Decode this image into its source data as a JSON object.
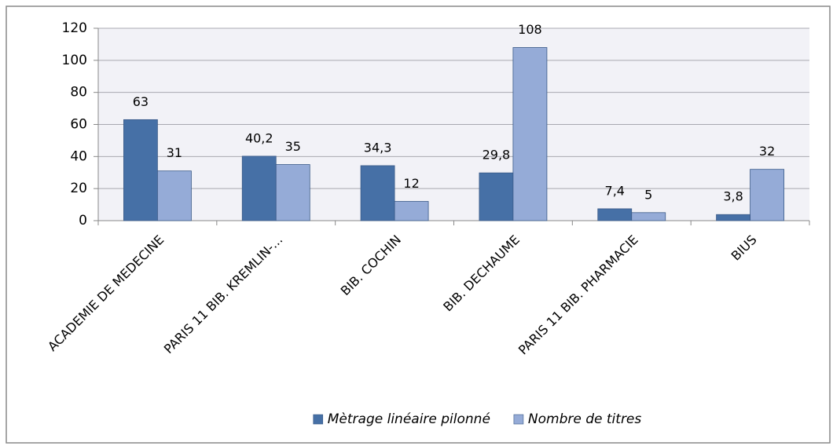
{
  "chart_data": {
    "type": "bar",
    "categories": [
      "ACADEMIE DE MEDECINE",
      "PARIS 11 BIB. KREMLIN-...",
      "BIB. COCHIN",
      "BIB. DECHAUME",
      "PARIS 11 BIB. PHARMACIE",
      "BIUS"
    ],
    "series": [
      {
        "name": "Mètrage linéaire pilonné",
        "color": "#4670a6",
        "values": [
          63,
          40.2,
          34.3,
          29.8,
          7.4,
          3.8
        ],
        "value_labels": [
          "63",
          "40,2",
          "34,3",
          "29,8",
          "7,4",
          "3,8"
        ]
      },
      {
        "name": "Nombre de titres",
        "color": "#95abd7",
        "values": [
          31,
          35,
          12,
          108,
          5,
          32
        ]
      }
    ],
    "ylim": [
      0,
      120
    ],
    "yticks": [
      0,
      20,
      40,
      60,
      80,
      100,
      120
    ],
    "grid": true,
    "legend": "bottom"
  }
}
